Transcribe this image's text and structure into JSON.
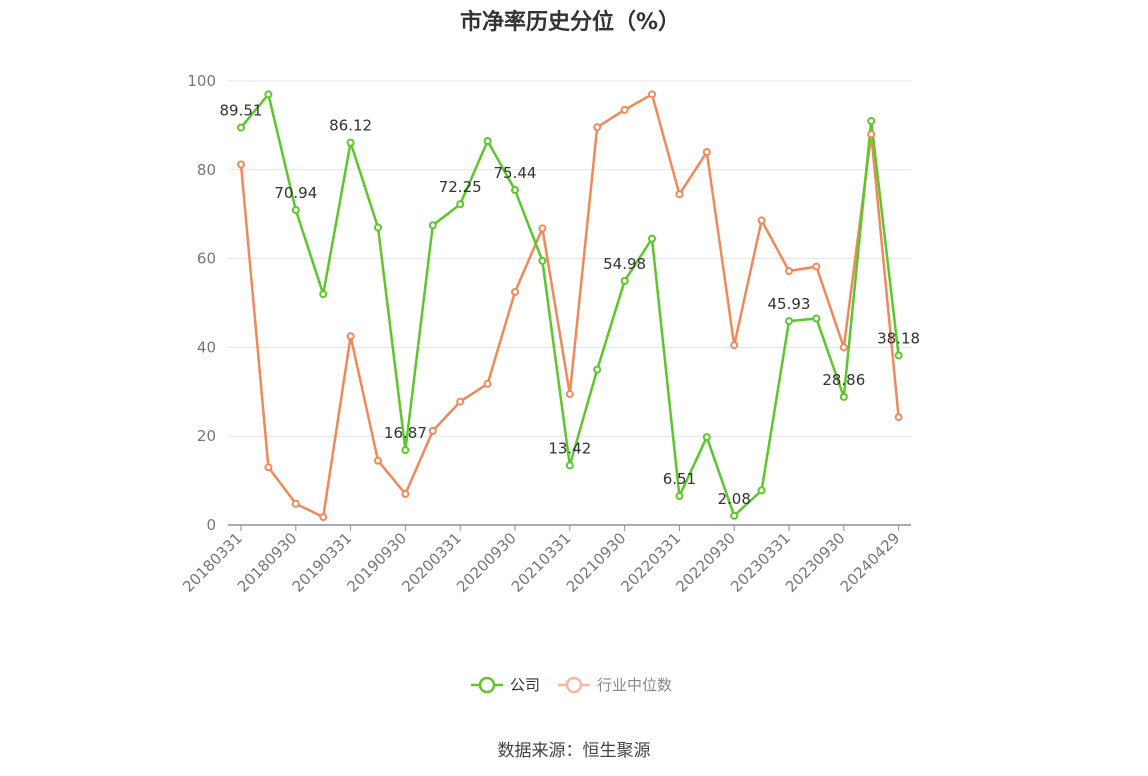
{
  "chart_data": {
    "type": "line",
    "title": "市净率历史分位（%）",
    "ylim": [
      0,
      100
    ],
    "yticks": [
      0,
      20,
      40,
      60,
      80,
      100
    ],
    "x": [
      "20180331",
      "20180630",
      "20180930",
      "20181231",
      "20190331",
      "20190630",
      "20190930",
      "20191231",
      "20200331",
      "20200630",
      "20200930",
      "20201231",
      "20210331",
      "20210630",
      "20210930",
      "20211231",
      "20220331",
      "20220630",
      "20220930",
      "20221231",
      "20230331",
      "20230630",
      "20230930",
      "20231231",
      "20240429"
    ],
    "xtick_labels": [
      "20180331",
      "20180930",
      "20190331",
      "20190930",
      "20200331",
      "20200930",
      "20210331",
      "20210930",
      "20220331",
      "20220930",
      "20230331",
      "20230930",
      "20240429"
    ],
    "series": [
      {
        "name": "公司",
        "color": "#5bc72b",
        "values": [
          89.51,
          97.0,
          70.94,
          52.0,
          86.12,
          67.0,
          16.87,
          67.5,
          72.25,
          86.5,
          75.44,
          59.5,
          13.42,
          35.0,
          54.98,
          64.5,
          6.51,
          19.8,
          2.08,
          7.8,
          45.93,
          46.5,
          28.86,
          91.0,
          38.18
        ],
        "data_labels": {
          "0": "89.51",
          "2": "70.94",
          "4": "86.12",
          "6": "16.87",
          "8": "72.25",
          "10": "75.44",
          "12": "13.42",
          "14": "54.98",
          "16": "6.51",
          "18": "2.08",
          "20": "45.93",
          "22": "28.86",
          "24": "38.18"
        }
      },
      {
        "name": "行业中位数",
        "color": "#f0895a",
        "values": [
          81.2,
          13.0,
          4.8,
          1.8,
          42.5,
          14.5,
          7.0,
          21.2,
          27.8,
          31.8,
          52.5,
          66.8,
          29.5,
          89.6,
          93.5,
          97.0,
          74.5,
          84.0,
          40.5,
          68.6,
          57.2,
          58.2,
          40.0,
          88.0,
          24.3
        ]
      }
    ],
    "legend": "bottom-center",
    "grid": true
  },
  "source_note": "数据来源：恒生聚源"
}
